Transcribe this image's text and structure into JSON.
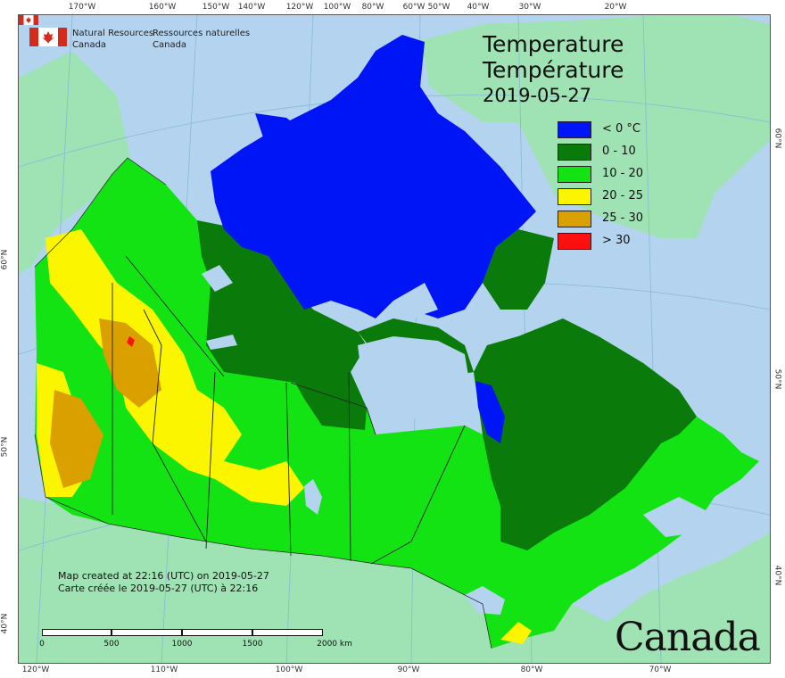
{
  "title_en": "Temperature",
  "title_fr": "Température",
  "date": "2019-05-27",
  "agency": {
    "en_line1": "Natural Resources",
    "en_line2": "Canada",
    "fr_line1": "Ressources naturelles",
    "fr_line2": "Canada"
  },
  "legend": [
    {
      "label": "< 0 °C",
      "color": "#0015f5"
    },
    {
      "label": "0 - 10",
      "color": "#0a7a0a"
    },
    {
      "label": "10 - 20",
      "color": "#13e313"
    },
    {
      "label": "20 - 25",
      "color": "#fbf500"
    },
    {
      "label": "25 - 30",
      "color": "#d9a000"
    },
    {
      "label": "> 30",
      "color": "#ff1010"
    }
  ],
  "credits": {
    "en": "Map created at 22:16 (UTC) on 2019-05-27",
    "fr": "Carte créée le 2019-05-27 (UTC) à 22:16"
  },
  "scale": {
    "labels": [
      "0",
      "500",
      "1000",
      "1500",
      "2000  km"
    ]
  },
  "wordmark": "Canada",
  "graticule": {
    "top": [
      "170°W",
      "160°W",
      "150°W",
      "140°W",
      "120°W",
      "100°W",
      "80°W",
      "60°W",
      "50°W",
      "40°W",
      "30°W",
      "20°W"
    ],
    "bottom": [
      "120°W",
      "110°W",
      "100°W",
      "90°W",
      "80°W",
      "70°W"
    ],
    "left": [
      "60°N",
      "50°N",
      "40°N"
    ],
    "right": [
      "60°N",
      "50°N",
      "40°N"
    ]
  },
  "colors": {
    "water": "#b4d3ef",
    "foreign_land": "#9fe3b4",
    "border": "#222222"
  }
}
